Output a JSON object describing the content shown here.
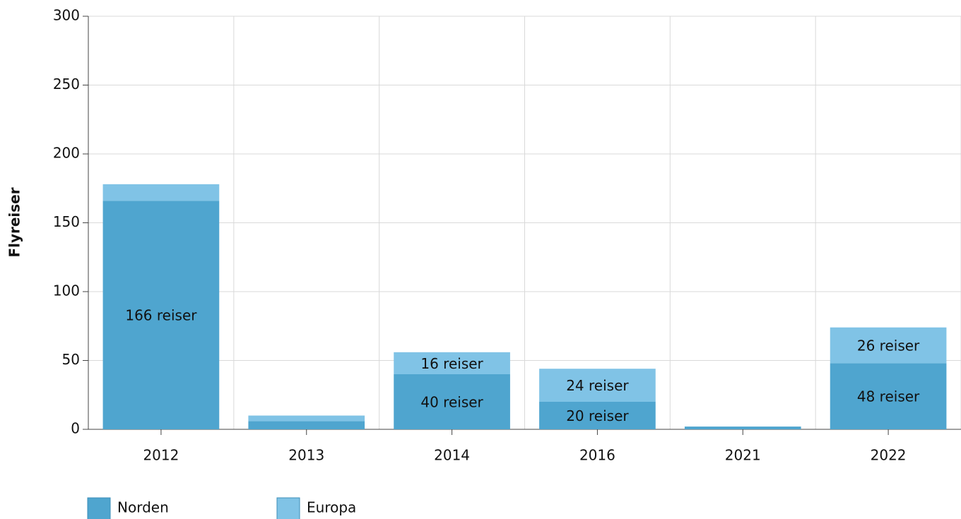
{
  "chart_data": {
    "type": "stacked_bar",
    "y_label": "Flyreiser",
    "categories": [
      "2012",
      "2013",
      "2014",
      "2016",
      "2021",
      "2022"
    ],
    "series": [
      {
        "name": "Norden",
        "color": "#4fa5cf",
        "values": [
          166,
          6,
          40,
          20,
          2,
          48
        ],
        "value_labels": [
          "166 reiser",
          null,
          "40 reiser",
          "20 reiser",
          null,
          "48 reiser"
        ]
      },
      {
        "name": "Europa",
        "color": "#80c3e6",
        "values": [
          12,
          4,
          16,
          24,
          0,
          26
        ],
        "value_labels": [
          null,
          null,
          "16 reiser",
          "24 reiser",
          null,
          "26 reiser"
        ]
      }
    ],
    "ylim": [
      0,
      300
    ],
    "yticks": [
      0,
      50,
      100,
      150,
      200,
      250,
      300
    ],
    "grid": true,
    "legend": "bottom"
  }
}
